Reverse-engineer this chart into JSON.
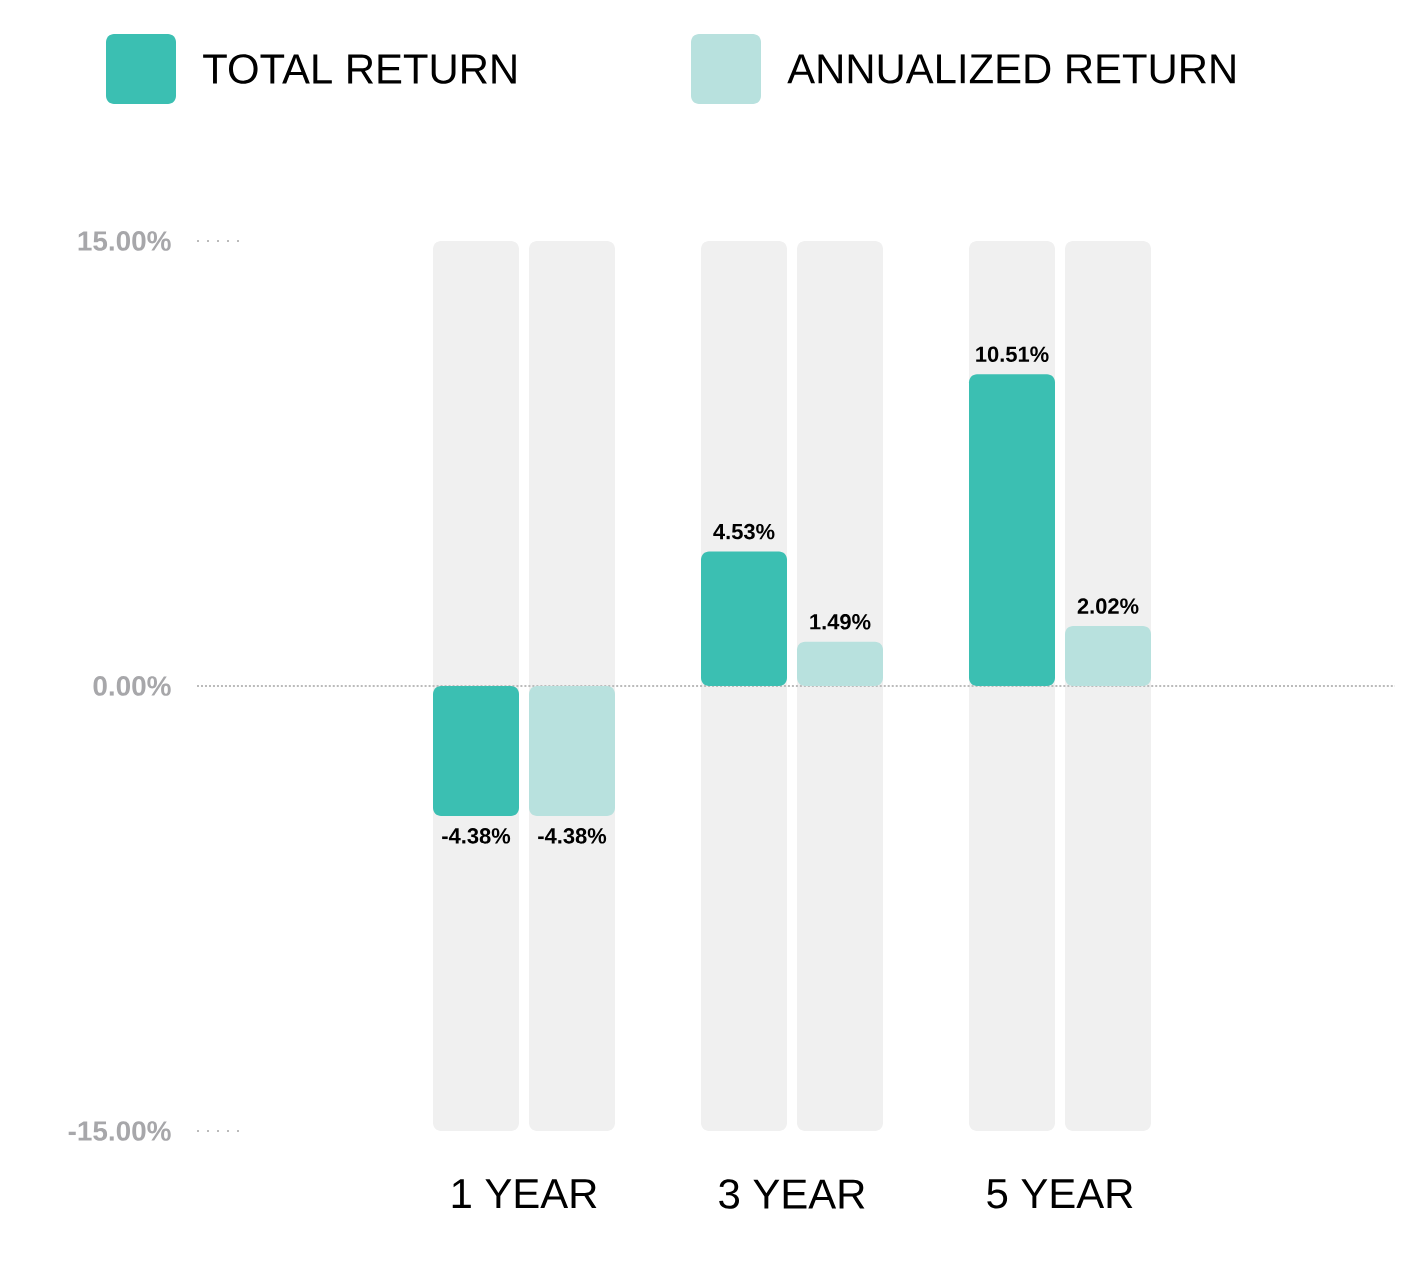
{
  "chart_data": {
    "type": "bar",
    "categories": [
      "1 YEAR",
      "3 YEAR",
      "5 YEAR"
    ],
    "series": [
      {
        "name": "TOTAL RETURN",
        "color": "#3bbfb2",
        "values": [
          -4.38,
          4.53,
          10.51
        ],
        "value_labels": [
          "-4.38%",
          "4.53%",
          "10.51%"
        ]
      },
      {
        "name": "ANNUALIZED RETURN",
        "color": "#b8e1de",
        "values": [
          -4.38,
          1.49,
          2.02
        ],
        "value_labels": [
          "-4.38%",
          "1.49%",
          "2.02%"
        ]
      }
    ],
    "ylim": [
      -15,
      15
    ],
    "yticks": [
      {
        "value": -15,
        "label": "-15.00%"
      },
      {
        "value": 0,
        "label": "0.00%"
      },
      {
        "value": 15,
        "label": "15.00%"
      }
    ],
    "ref_lines": [
      {
        "axis": "y",
        "value": 0,
        "line_style": "dotted",
        "color": "#bbbbbb"
      }
    ],
    "legend": "top",
    "grid": false
  }
}
